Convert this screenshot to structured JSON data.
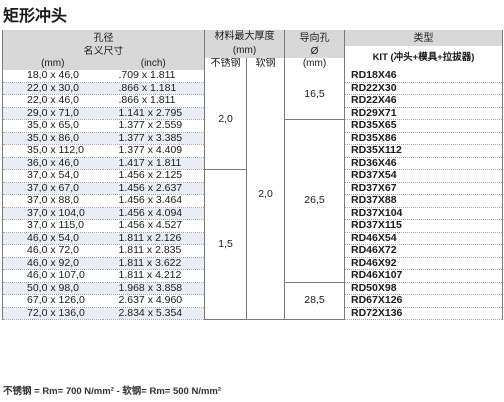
{
  "title": "矩形冲头",
  "headers": {
    "hole": "孔径",
    "thickness": "材料最大厚度",
    "thickness_unit": "(mm)",
    "guide": "导向孔",
    "type": "类型",
    "nominal": "名义尺寸",
    "stainless": "不锈钢",
    "mild": "软钢",
    "phi": "Ø",
    "mm": "(mm)",
    "inch": "(inch)",
    "guide_unit": "(mm)",
    "kit": "KIT (冲头+模具+拉拔器)"
  },
  "rows": [
    {
      "mm": "18,0 x 46,0",
      "inch": ".709 x 1.811",
      "ptr": "RD18X46"
    },
    {
      "mm": "22,0 x 30,0",
      "inch": ".866 x 1.181",
      "ptr": "RD22X30"
    },
    {
      "mm": "22,0 x 46,0",
      "inch": ".866 x 1.811",
      "ptr": "RD22X46"
    },
    {
      "mm": "29,0 x 71,0",
      "inch": "1.141 x 2.795",
      "ptr": "RD29X71"
    },
    {
      "mm": "35,0 x 65,0",
      "inch": "1.377 x 2.559",
      "ptr": "RD35X65"
    },
    {
      "mm": "35,0 x 86,0",
      "inch": "1.377 x 3.385",
      "ptr": "RD35X86"
    },
    {
      "mm": "35,0 x 112,0",
      "inch": "1.377 x 4.409",
      "ptr": "RD35X112"
    },
    {
      "mm": "36,0 x 46,0",
      "inch": "1.417 x 1.811",
      "ptr": "RD36X46"
    },
    {
      "mm": "37,0 x 54,0",
      "inch": "1.456 x 2.125",
      "ptr": "RD37X54"
    },
    {
      "mm": "37,0 x 67,0",
      "inch": "1.456 x 2.637",
      "ptr": "RD37X67"
    },
    {
      "mm": "37,0 x 88,0",
      "inch": "1.456 x 3.464",
      "ptr": "RD37X88"
    },
    {
      "mm": "37,0 x 104,0",
      "inch": "1.456 x 4.094",
      "ptr": "RD37X104"
    },
    {
      "mm": "37,0 x 115,0",
      "inch": "1.456 x 4.527",
      "ptr": "RD37X115"
    },
    {
      "mm": "46,0 x 54,0",
      "inch": "1.811 x 2.126",
      "ptr": "RD46X54"
    },
    {
      "mm": "46,0 x 72,0",
      "inch": "1.811 x 2.835",
      "ptr": "RD46X72"
    },
    {
      "mm": "46,0 x 92,0",
      "inch": "1.811 x 3.622",
      "ptr": "RD46X92"
    },
    {
      "mm": "46,0 x 107,0",
      "inch": "1.811 x 4.212",
      "ptr": "RD46X107"
    },
    {
      "mm": "50,0 x 98,0",
      "inch": "1.968 x 3.858",
      "ptr": "RD50X98"
    },
    {
      "mm": "67,0 x 126,0",
      "inch": "2.637 x 4.960",
      "ptr": "RD67X126"
    },
    {
      "mm": "72,0 x 136,0",
      "inch": "2.834 x 5.354",
      "ptr": "RD72X136"
    }
  ],
  "stainless_groups": [
    {
      "value": "2,0"
    },
    {
      "value": "1,5"
    }
  ],
  "mild_value": "2,0",
  "guide_groups": [
    {
      "value": "16,5"
    },
    {
      "value": "26,5"
    },
    {
      "value": "28,5"
    }
  ],
  "footer": "不锈钢 = Rm= 700 N/mm²  -  软钢= Rm= 500 N/mm²"
}
